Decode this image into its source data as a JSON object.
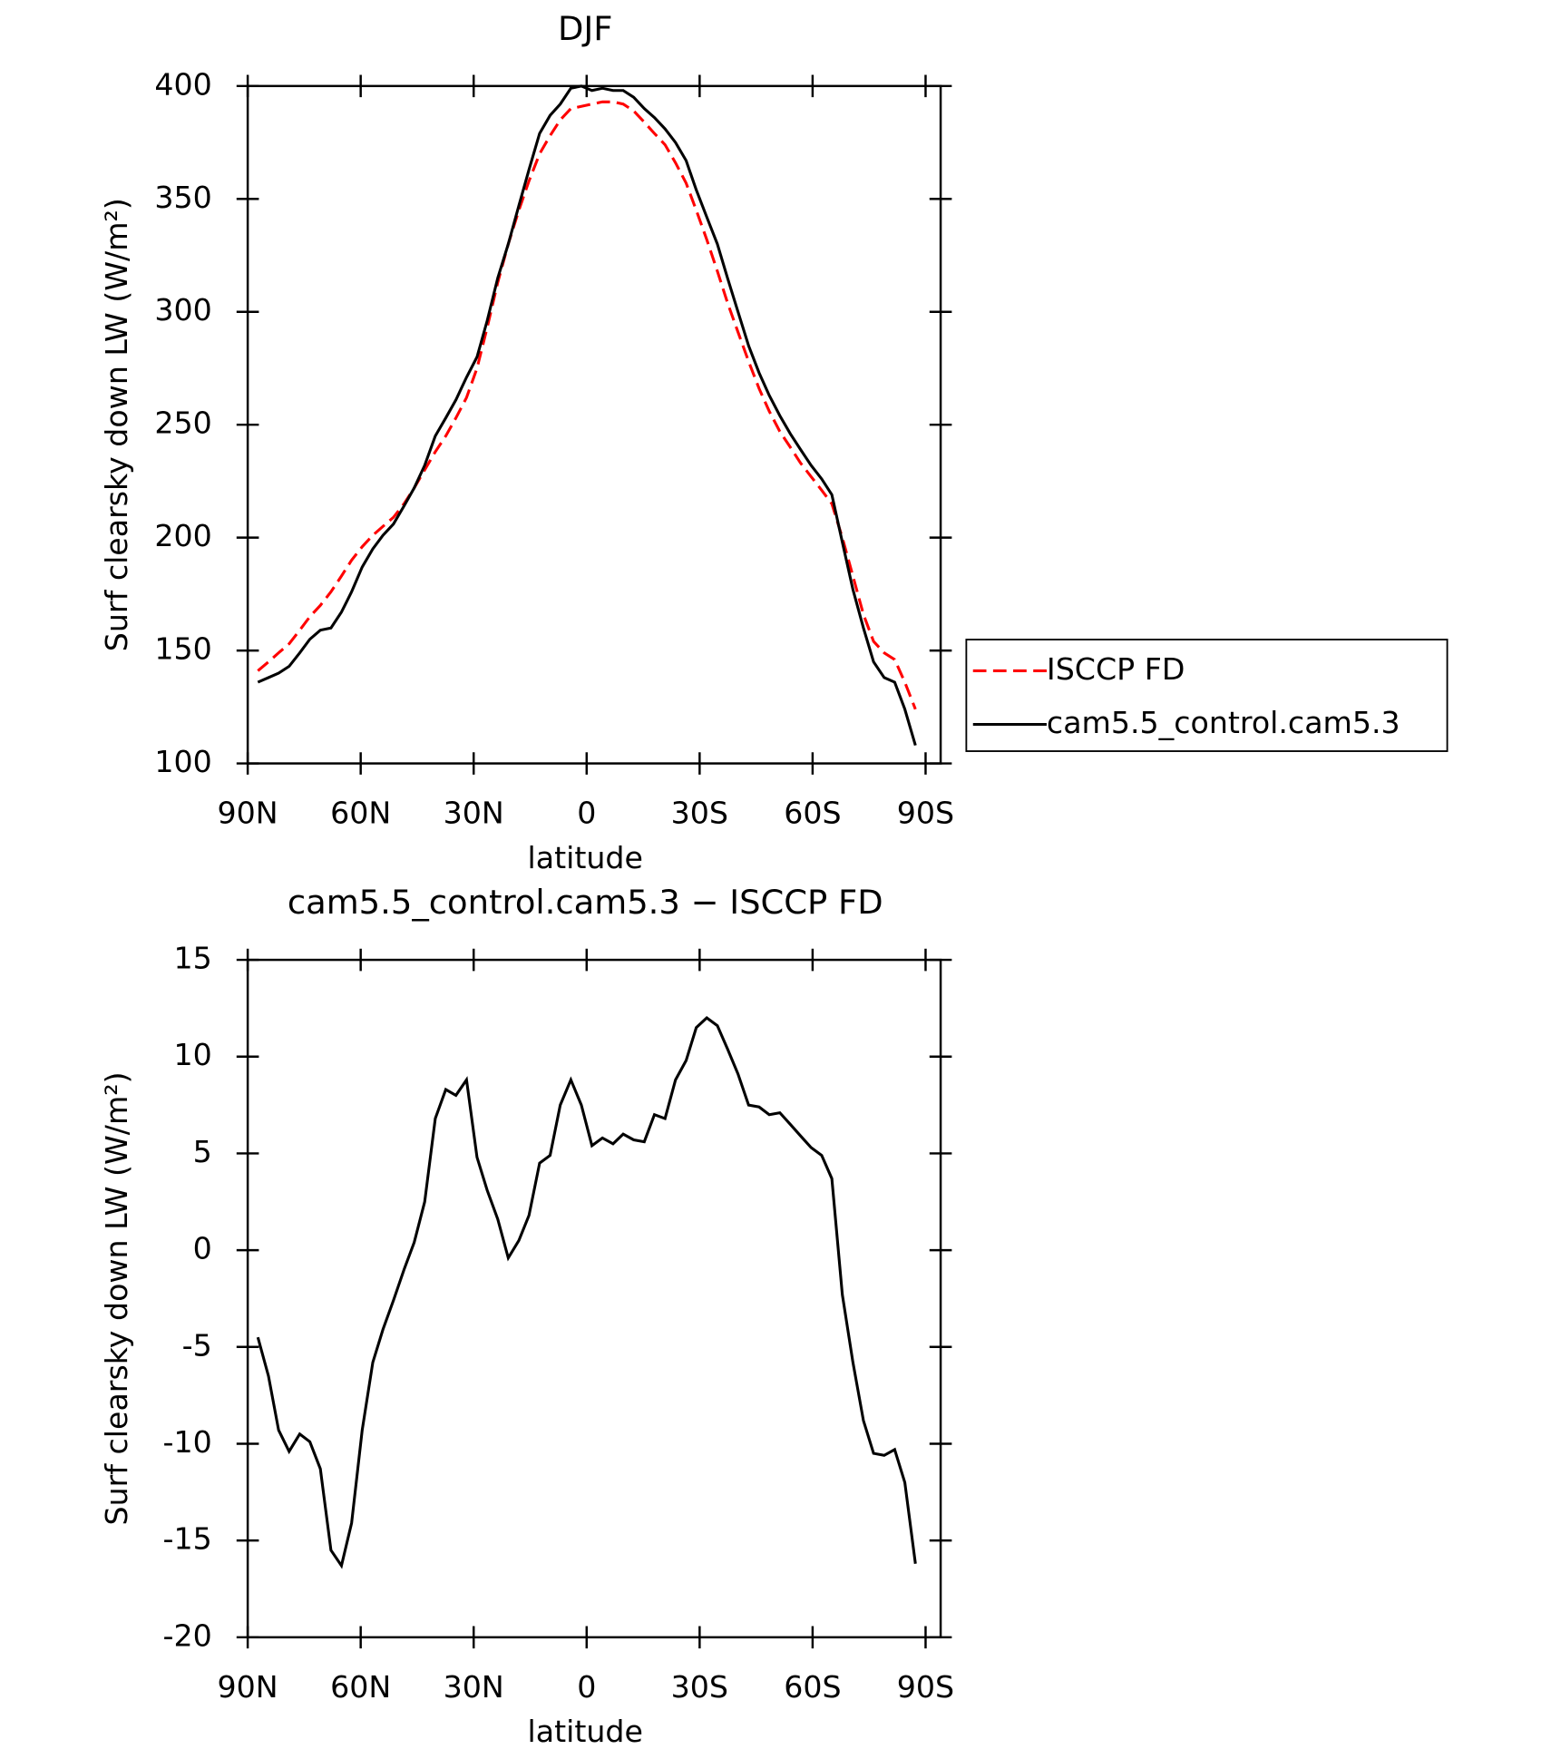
{
  "chart_data": [
    {
      "type": "line",
      "title": "DJF",
      "xlabel": "latitude",
      "ylabel": "Surf clearsky down LW (W/m²)",
      "x": [
        87.3,
        84.5,
        81.8,
        79.0,
        76.2,
        73.5,
        70.7,
        67.9,
        65.1,
        62.4,
        59.6,
        56.8,
        54.1,
        51.3,
        48.5,
        45.8,
        43.0,
        40.2,
        37.4,
        34.7,
        31.9,
        29.1,
        26.4,
        23.6,
        20.8,
        18.0,
        15.3,
        12.5,
        9.7,
        7.0,
        4.2,
        1.4,
        -1.4,
        -4.2,
        -7.0,
        -9.7,
        -12.5,
        -15.3,
        -18.0,
        -20.8,
        -23.6,
        -26.4,
        -29.1,
        -31.9,
        -34.7,
        -37.4,
        -40.2,
        -43.0,
        -45.8,
        -48.5,
        -51.3,
        -54.1,
        -56.8,
        -59.6,
        -62.4,
        -65.1,
        -67.9,
        -70.7,
        -73.5,
        -76.2,
        -79.0,
        -81.8,
        -84.5,
        -87.3
      ],
      "series": [
        {
          "name": "ISCCP FD",
          "color": "#ff0000",
          "dashed": true,
          "values": [
            141,
            145,
            149,
            153,
            159,
            165,
            170,
            176,
            183,
            190,
            196,
            201,
            205,
            209,
            215,
            222,
            230,
            238,
            245,
            253,
            262,
            275,
            293,
            313,
            330,
            345,
            358,
            370,
            378,
            385,
            390,
            391,
            392,
            393,
            393,
            392,
            389,
            384,
            379,
            374,
            366,
            357,
            345,
            332,
            318,
            304,
            291,
            278,
            266,
            256,
            247,
            240,
            233,
            227,
            221,
            215,
            200,
            183,
            166,
            154,
            149,
            146,
            136,
            124
          ]
        },
        {
          "name": "cam5.5_control.cam5.3",
          "color": "#000000",
          "dashed": false,
          "values": [
            136,
            138,
            140,
            143,
            149,
            155,
            159,
            160,
            167,
            176,
            187,
            195,
            201,
            206,
            214,
            222,
            232,
            245,
            253,
            261,
            271,
            280,
            296,
            315,
            330,
            347,
            363,
            379,
            387,
            392,
            399,
            400,
            398,
            399,
            398,
            398,
            395,
            390,
            386,
            381,
            375,
            367,
            354,
            342,
            330,
            315,
            300,
            285,
            273,
            263,
            254,
            246,
            239,
            232,
            226,
            219,
            198,
            177,
            160,
            145,
            138,
            136,
            124,
            108
          ]
        }
      ],
      "xlim": [
        90,
        -94
      ],
      "ylim": [
        100,
        400
      ],
      "yticks": [
        100,
        150,
        200,
        250,
        300,
        350,
        400
      ],
      "xticks": [
        {
          "value": 90,
          "label": "90N"
        },
        {
          "value": 60,
          "label": "60N"
        },
        {
          "value": 30,
          "label": "30N"
        },
        0,
        {
          "value": -30,
          "label": "30S"
        },
        {
          "value": -60,
          "label": "60S"
        },
        {
          "value": -90,
          "label": "90S"
        }
      ],
      "legend": "right"
    },
    {
      "type": "line",
      "title": "cam5.5_control.cam5.3 − ISCCP FD",
      "xlabel": "latitude",
      "ylabel": "Surf clearsky down LW (W/m²)",
      "x": [
        87.3,
        84.5,
        81.8,
        79.0,
        76.2,
        73.5,
        70.7,
        67.9,
        65.1,
        62.4,
        59.6,
        56.8,
        54.1,
        51.3,
        48.5,
        45.8,
        43.0,
        40.2,
        37.4,
        34.7,
        31.9,
        29.1,
        26.4,
        23.6,
        20.8,
        18.0,
        15.3,
        12.5,
        9.7,
        7.0,
        4.2,
        1.4,
        -1.4,
        -4.2,
        -7.0,
        -9.7,
        -12.5,
        -15.3,
        -18.0,
        -20.8,
        -23.6,
        -26.4,
        -29.1,
        -31.9,
        -34.7,
        -37.4,
        -40.2,
        -43.0,
        -45.8,
        -48.5,
        -51.3,
        -54.1,
        -56.8,
        -59.6,
        -62.4,
        -65.1,
        -67.9,
        -70.7,
        -73.5,
        -76.2,
        -79.0,
        -81.8,
        -84.5,
        -87.3
      ],
      "series": [
        {
          "color": "#000000",
          "dashed": false,
          "values": [
            -4.5,
            -6.5,
            -9.3,
            -10.4,
            -9.5,
            -9.9,
            -11.3,
            -15.5,
            -16.3,
            -14.1,
            -9.3,
            -5.8,
            -4.1,
            -2.6,
            -1.0,
            0.4,
            2.5,
            6.8,
            8.3,
            8.0,
            8.8,
            4.8,
            3.1,
            1.6,
            -0.4,
            0.5,
            1.8,
            4.5,
            4.9,
            7.5,
            8.8,
            7.5,
            5.4,
            5.8,
            5.5,
            6.0,
            5.7,
            5.6,
            7.0,
            6.8,
            8.8,
            9.8,
            11.5,
            12.0,
            11.6,
            10.4,
            9.1,
            7.5,
            7.4,
            7.0,
            7.1,
            6.5,
            5.9,
            5.3,
            4.9,
            3.7,
            -2.3,
            -5.8,
            -8.8,
            -10.5,
            -10.6,
            -10.3,
            -12.0,
            -16.2
          ]
        }
      ],
      "xlim": [
        90,
        -94
      ],
      "ylim": [
        -20,
        15
      ],
      "yticks": [
        -20,
        -15,
        -10,
        -5,
        0,
        5,
        10,
        15
      ],
      "xticks": [
        {
          "value": 90,
          "label": "90N"
        },
        {
          "value": 60,
          "label": "60N"
        },
        {
          "value": 30,
          "label": "30N"
        },
        0,
        {
          "value": -30,
          "label": "30S"
        },
        {
          "value": -60,
          "label": "60S"
        },
        {
          "value": -90,
          "label": "90S"
        }
      ]
    }
  ]
}
